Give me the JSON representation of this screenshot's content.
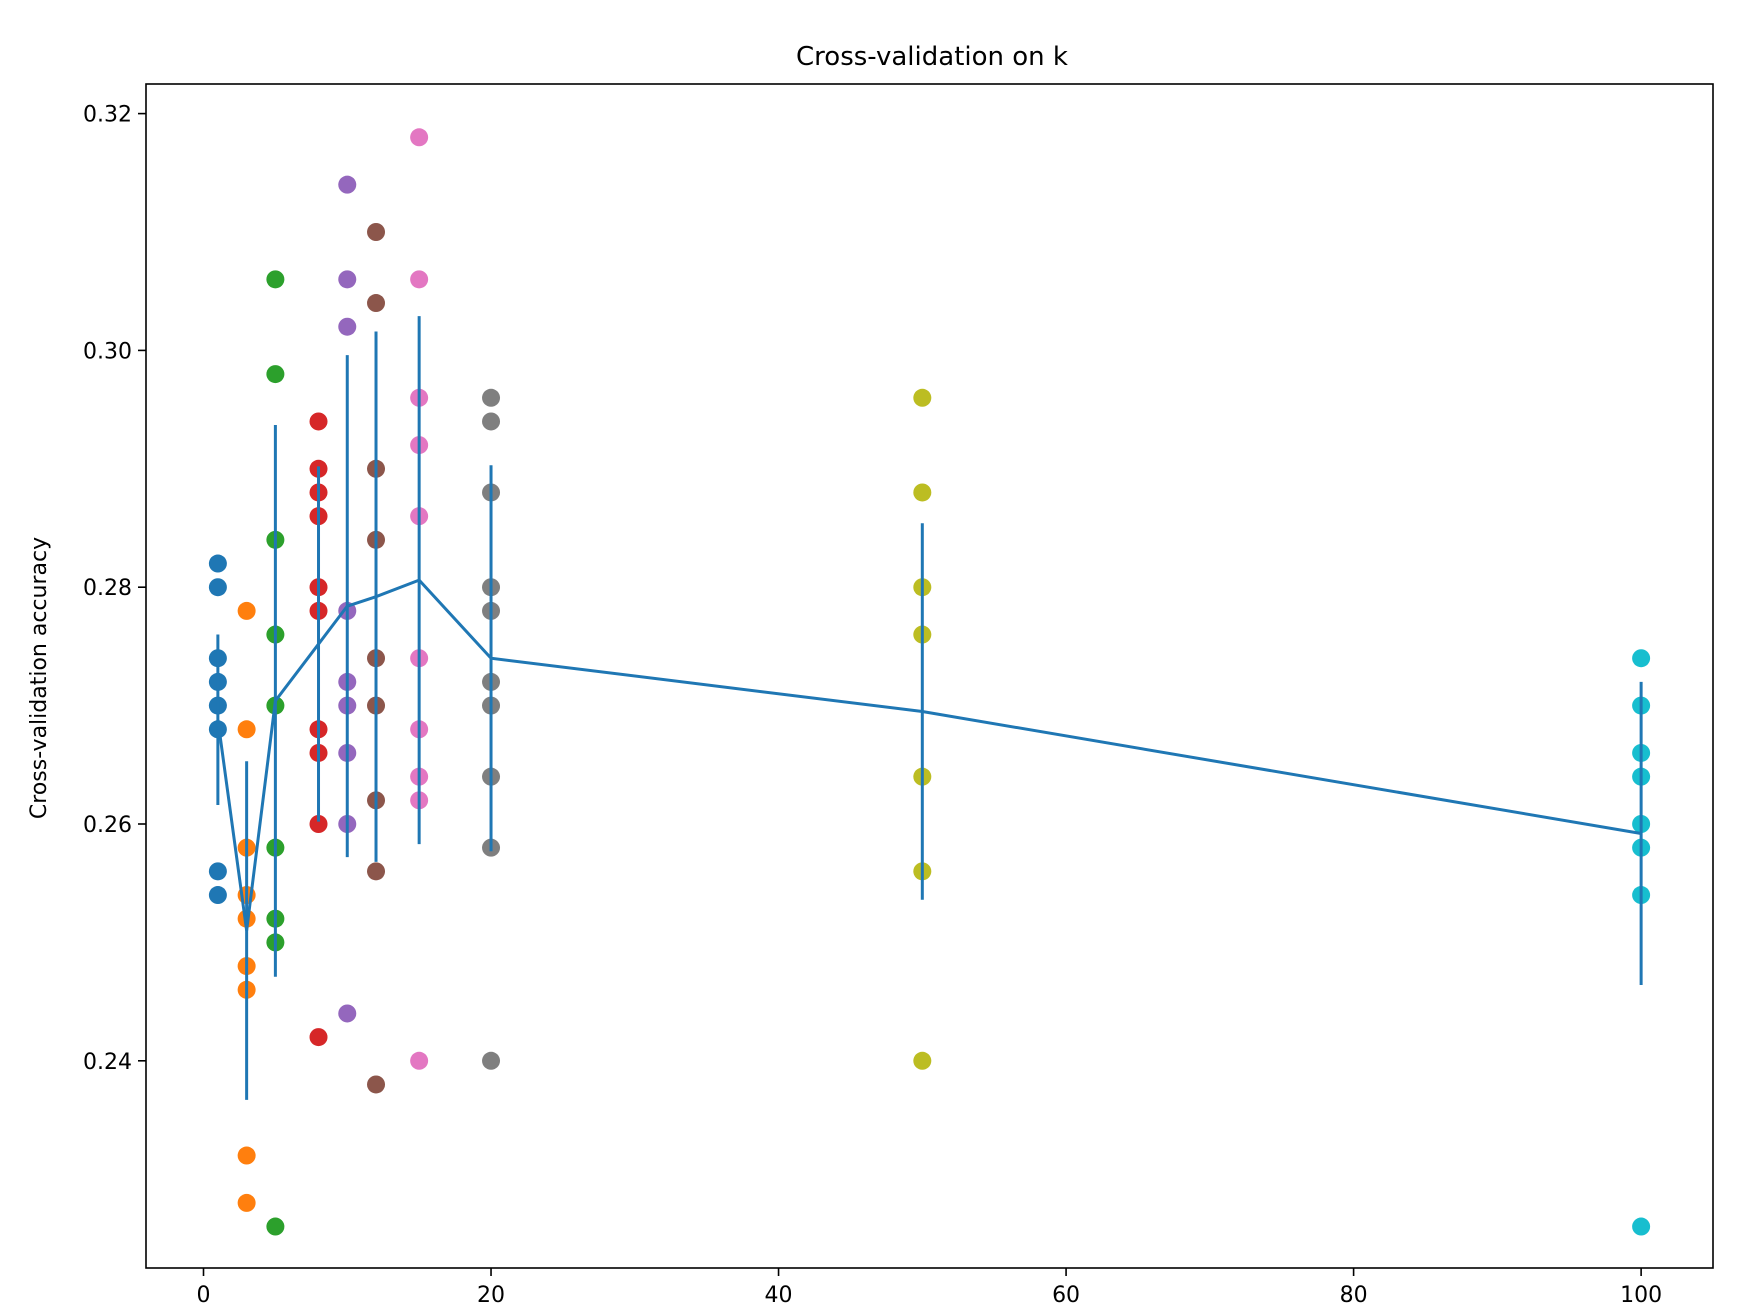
{
  "chart_data": {
    "type": "scatter",
    "title": "Cross-validation on k",
    "xlabel": "",
    "ylabel": "Cross-validation accuracy",
    "xlim": [
      -4,
      105
    ],
    "ylim": [
      0.2225,
      0.3225
    ],
    "xticks": [
      0,
      20,
      40,
      60,
      80,
      100
    ],
    "xtick_labels": [
      "0",
      "20",
      "40",
      "60",
      "80",
      "100"
    ],
    "yticks": [
      0.24,
      0.26,
      0.28,
      0.3,
      0.32
    ],
    "ytick_labels": [
      "0.24",
      "0.26",
      "0.28",
      "0.30",
      "0.32"
    ],
    "grid": false,
    "series": [
      {
        "k": 1,
        "color": "#1f77b4",
        "values": [
          0.282,
          0.28,
          0.274,
          0.272,
          0.27,
          0.268,
          0.256,
          0.254
        ]
      },
      {
        "k": 3,
        "color": "#ff7f0e",
        "values": [
          0.278,
          0.268,
          0.258,
          0.254,
          0.252,
          0.248,
          0.246,
          0.232,
          0.228
        ]
      },
      {
        "k": 5,
        "color": "#2ca02c",
        "values": [
          0.306,
          0.298,
          0.284,
          0.276,
          0.27,
          0.258,
          0.252,
          0.25,
          0.226
        ]
      },
      {
        "k": 8,
        "color": "#d62728",
        "values": [
          0.294,
          0.29,
          0.288,
          0.286,
          0.28,
          0.278,
          0.268,
          0.266,
          0.26,
          0.242
        ]
      },
      {
        "k": 10,
        "color": "#9467bd",
        "values": [
          0.314,
          0.306,
          0.302,
          0.278,
          0.272,
          0.27,
          0.266,
          0.26,
          0.244
        ]
      },
      {
        "k": 12,
        "color": "#8c564b",
        "values": [
          0.31,
          0.304,
          0.29,
          0.284,
          0.274,
          0.27,
          0.262,
          0.256,
          0.238
        ]
      },
      {
        "k": 15,
        "color": "#e377c2",
        "values": [
          0.318,
          0.306,
          0.296,
          0.292,
          0.286,
          0.274,
          0.268,
          0.264,
          0.262,
          0.24
        ]
      },
      {
        "k": 20,
        "color": "#7f7f7f",
        "values": [
          0.296,
          0.294,
          0.288,
          0.28,
          0.278,
          0.272,
          0.27,
          0.264,
          0.258,
          0.24
        ]
      },
      {
        "k": 50,
        "color": "#bcbd22",
        "values": [
          0.296,
          0.288,
          0.28,
          0.276,
          0.264,
          0.256,
          0.24
        ]
      },
      {
        "k": 100,
        "color": "#17becf",
        "values": [
          0.274,
          0.27,
          0.266,
          0.264,
          0.26,
          0.258,
          0.254,
          0.226
        ]
      }
    ],
    "errorbar": {
      "color": "#1f77b4",
      "x": [
        1,
        3,
        5,
        8,
        10,
        12,
        15,
        20,
        50,
        100
      ],
      "mean": [
        0.2688,
        0.251,
        0.2704,
        0.2752,
        0.2784,
        0.2792,
        0.2806,
        0.274,
        0.2695,
        0.2592
      ],
      "std": [
        0.0072,
        0.0143,
        0.0233,
        0.015,
        0.0212,
        0.0224,
        0.0223,
        0.0163,
        0.0159,
        0.0128
      ]
    }
  }
}
